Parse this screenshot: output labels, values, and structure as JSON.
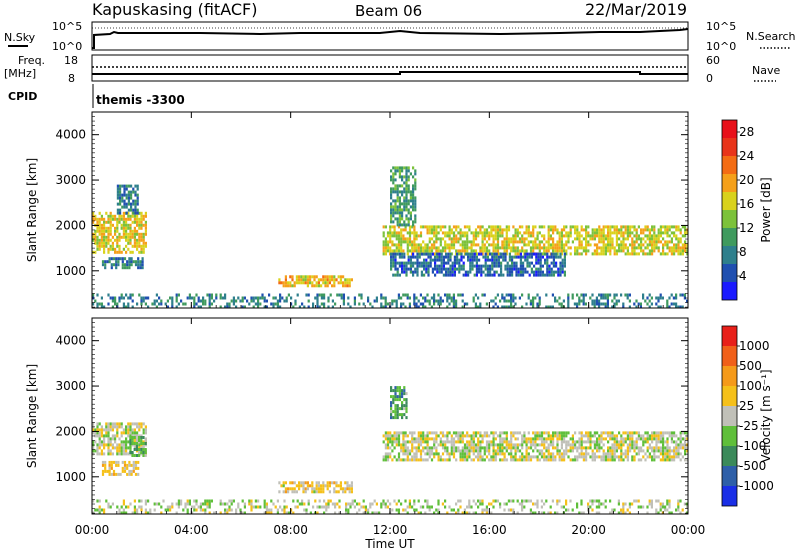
{
  "header": {
    "station": "Kapuskasing (fitACF)",
    "beam": "Beam 06",
    "date": "22/Mar/2019"
  },
  "top_panels": {
    "nsky_label": "N.Sky",
    "nsky_ticks": [
      "10^5",
      "10^0"
    ],
    "nsearch_label": "N.Search",
    "nsearch_ticks": [
      "10^5",
      "10^0"
    ],
    "freq_label": "Freq.",
    "freq_unit": "[MHz]",
    "freq_ticks": [
      "18",
      "8"
    ],
    "nave_label": "Nave",
    "nave_ticks": [
      "60",
      "0"
    ],
    "cpid_label": "CPID",
    "cpid_text": "themis -3300"
  },
  "chart_data": [
    {
      "type": "heatmap",
      "title": "",
      "xlabel": "",
      "ylabel": "Slant Range [km]",
      "xlim": [
        0,
        24
      ],
      "ylim": [
        180,
        4500
      ],
      "x_ticks": [
        "00:00",
        "04:00",
        "08:00",
        "12:00",
        "16:00",
        "20:00",
        "00:00"
      ],
      "y_ticks": [
        "1000",
        "2000",
        "3000",
        "4000"
      ],
      "colorbar": {
        "label": "Power [dB]",
        "ticks": [
          "4",
          "8",
          "12",
          "16",
          "20",
          "24",
          "28"
        ],
        "range": [
          0,
          30
        ],
        "colors": [
          "#1a1aff",
          "#1f4fb0",
          "#2e7f8c",
          "#3f9a5e",
          "#7cc23a",
          "#d9d21c",
          "#f5a01a",
          "#f36c14",
          "#e8341a",
          "#e8101a"
        ]
      },
      "regions": [
        {
          "t": [
            0.0,
            2.2
          ],
          "r": [
            1400,
            2300
          ],
          "value": 17
        },
        {
          "t": [
            0.4,
            2.0
          ],
          "r": [
            1050,
            1300
          ],
          "value": 7
        },
        {
          "t": [
            1.0,
            1.8
          ],
          "r": [
            2300,
            2900
          ],
          "value": 8
        },
        {
          "t": [
            7.5,
            10.5
          ],
          "r": [
            700,
            900
          ],
          "value": 18
        },
        {
          "t": [
            11.7,
            24.0
          ],
          "r": [
            1400,
            2000
          ],
          "value": 16
        },
        {
          "t": [
            12.0,
            19.0
          ],
          "r": [
            900,
            1400
          ],
          "value": 6
        },
        {
          "t": [
            12.0,
            13.0
          ],
          "r": [
            2000,
            3300
          ],
          "value": 10
        },
        {
          "t": [
            0.0,
            24.0
          ],
          "r": [
            180,
            500
          ],
          "value": 8
        }
      ]
    },
    {
      "type": "heatmap",
      "title": "",
      "xlabel": "Time UT",
      "ylabel": "Slant Range [km]",
      "xlim": [
        0,
        24
      ],
      "ylim": [
        180,
        4500
      ],
      "x_ticks": [
        "00:00",
        "04:00",
        "08:00",
        "12:00",
        "16:00",
        "20:00",
        "00:00"
      ],
      "y_ticks": [
        "1000",
        "2000",
        "3000",
        "4000"
      ],
      "colorbar": {
        "label": "Velocity [m s⁻¹]",
        "ticks": [
          "1000",
          "500",
          "100",
          "25",
          "-25",
          "-100",
          "-500",
          "-1000"
        ],
        "range": [
          -1200,
          1200
        ],
        "colors": [
          "#1a2fe6",
          "#2e5fa8",
          "#3b8a5a",
          "#5fbf3a",
          "#c0c0b8",
          "#f5c01a",
          "#f59a1a",
          "#f0601a",
          "#e8201a"
        ]
      },
      "regions": [
        {
          "t": [
            0.0,
            2.2
          ],
          "r": [
            1500,
            2200
          ],
          "value": 0
        },
        {
          "t": [
            1.5,
            2.2
          ],
          "r": [
            1450,
            1900
          ],
          "value": -300
        },
        {
          "t": [
            0.4,
            1.9
          ],
          "r": [
            1050,
            1350
          ],
          "value": 200
        },
        {
          "t": [
            7.5,
            10.5
          ],
          "r": [
            700,
            900
          ],
          "value": 150
        },
        {
          "t": [
            11.7,
            24.0
          ],
          "r": [
            1400,
            2000
          ],
          "value": 0
        },
        {
          "t": [
            12.0,
            12.7
          ],
          "r": [
            2300,
            3000
          ],
          "value": -400
        },
        {
          "t": [
            0.0,
            24.0
          ],
          "r": [
            180,
            500
          ],
          "value": -50
        }
      ]
    }
  ]
}
